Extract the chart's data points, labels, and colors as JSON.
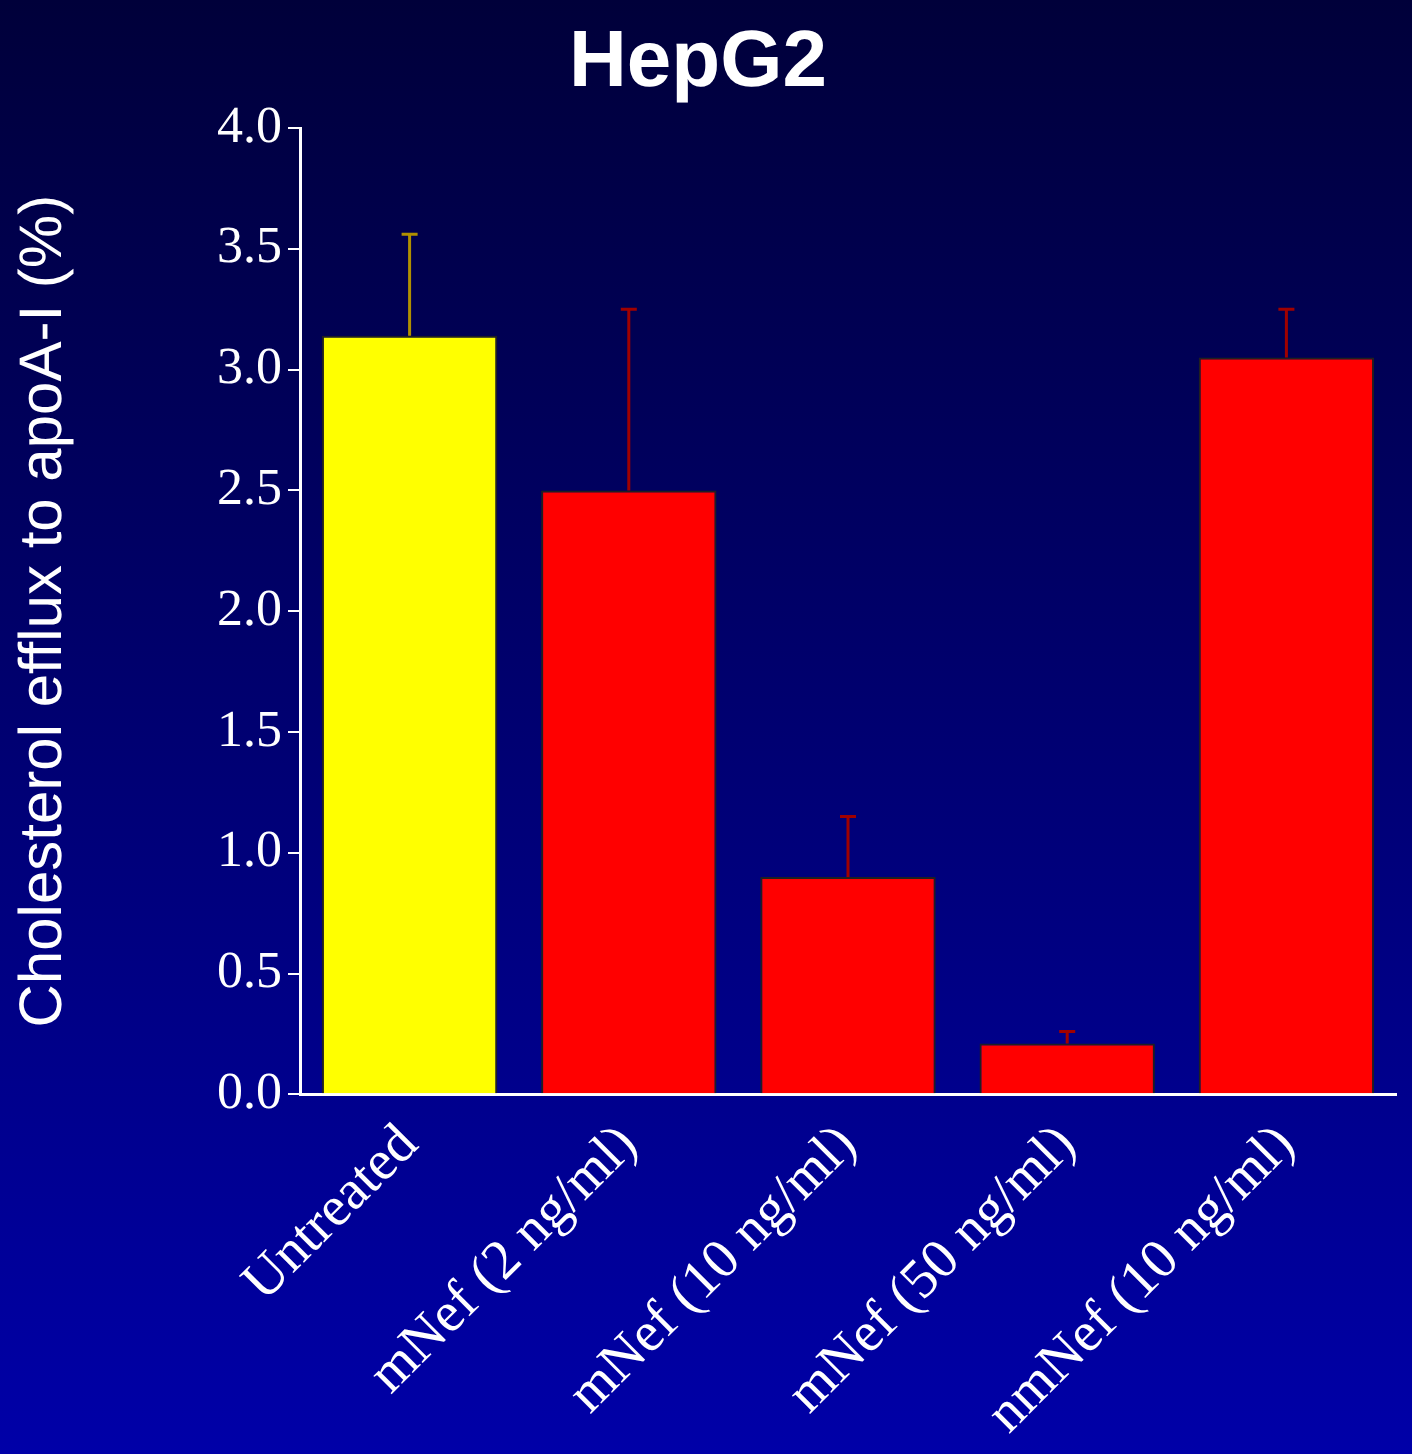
{
  "chart_data": {
    "type": "bar",
    "title": "HepG2",
    "ylabel": "Cholesterol efflux to apoA-I (%)",
    "categories": [
      "Untreated",
      "mNef (2 ng/ml)",
      "mNef (10 ng/ml)",
      "mNef (50 ng/ml)",
      "nmNef (10 ng/ml)"
    ],
    "values": [
      3.14,
      2.5,
      0.9,
      0.21,
      3.05
    ],
    "colors": [
      "#ffff00",
      "#ff0000",
      "#ff0000",
      "#ff0000",
      "#ff0000"
    ],
    "errors": [
      [
        3.14,
        3.56
      ],
      [
        2.5,
        3.25
      ],
      [
        0.9,
        1.15
      ],
      [
        0.21,
        0.26
      ],
      [
        3.05,
        3.25
      ]
    ],
    "ylim": [
      0,
      4
    ],
    "yticks": [
      {
        "value": 0,
        "label": "0.0"
      },
      {
        "value": 0.5,
        "label": "0.5"
      },
      {
        "value": 1,
        "label": "1.0"
      },
      {
        "value": 1.5,
        "label": "1.5"
      },
      {
        "value": 2,
        "label": "2.0"
      },
      {
        "value": 2.5,
        "label": "2.5"
      },
      {
        "value": 3,
        "label": "3.0"
      },
      {
        "value": 3.5,
        "label": "3.5"
      },
      {
        "value": 4,
        "label": "4.0"
      }
    ],
    "grid": false,
    "legend": false
  }
}
